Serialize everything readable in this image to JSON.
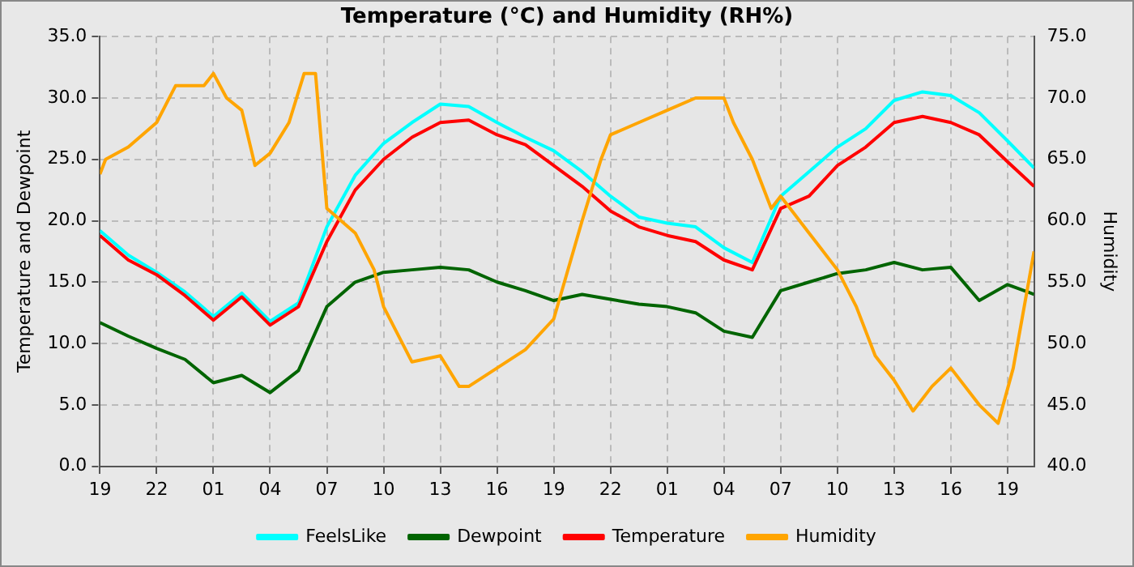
{
  "chart_data": {
    "type": "line",
    "title": "Temperature (°C) and Humidity (RH%)",
    "ylabel": "Temperature and Dewpoint",
    "y2label": "Humidity",
    "x": [
      "--01-01T19:00",
      "--01-01T20:30",
      "--01-01T22:00",
      "--01-01T23:30",
      "--01-02T01:00",
      "--01-02T02:30",
      "--01-02T04:00",
      "--01-02T05:30",
      "--01-02T07:00",
      "--01-02T08:30",
      "--01-02T10:00",
      "--01-02T11:30",
      "--01-02T13:00",
      "--01-02T14:30",
      "--01-02T16:00",
      "--01-02T17:30",
      "--01-02T19:00",
      "--01-02T20:30",
      "--01-02T22:00",
      "--01-02T23:30",
      "--01-03T01:00",
      "--01-03T02:30",
      "--01-03T04:00",
      "--01-03T05:30",
      "--01-03T07:00",
      "--01-03T08:30",
      "--01-03T10:00",
      "--01-03T11:30",
      "--01-03T13:00",
      "--01-03T14:30",
      "--01-03T16:00",
      "--01-03T17:30",
      "--01-03T19:00",
      "--01-03T20:24"
    ],
    "series": [
      {
        "name": "FeelsLike",
        "color": "#00ffff",
        "values": [
          19.2,
          17.2,
          15.8,
          14.2,
          12.2,
          14.1,
          11.8,
          13.3,
          19.5,
          23.7,
          26.3,
          28.0,
          29.5,
          29.3,
          28.0,
          26.8,
          25.7,
          24.0,
          22.0,
          20.3,
          19.8,
          19.5,
          17.8,
          16.6,
          22.0,
          24.0,
          26.0,
          27.5,
          29.8,
          30.5,
          30.2,
          28.8,
          26.5,
          24.3
        ]
      },
      {
        "name": "Dewpoint",
        "color": "#006400",
        "values": [
          11.7,
          10.6,
          9.6,
          8.7,
          6.8,
          7.4,
          6.0,
          7.8,
          13.0,
          15.0,
          15.8,
          16.0,
          16.2,
          16.0,
          15.0,
          14.3,
          13.5,
          14.0,
          13.6,
          13.2,
          13.0,
          12.5,
          11.0,
          10.5,
          14.3,
          15.0,
          15.7,
          16.0,
          16.6,
          16.0,
          16.2,
          13.5,
          14.8,
          14.0
        ]
      },
      {
        "name": "Temperature",
        "color": "#ff0000",
        "values": [
          18.8,
          16.8,
          15.6,
          13.9,
          11.9,
          13.8,
          11.5,
          13.0,
          18.3,
          22.5,
          25.0,
          26.8,
          28.0,
          28.2,
          27.0,
          26.2,
          24.5,
          22.8,
          20.8,
          19.5,
          18.8,
          18.3,
          16.8,
          16.0,
          21.0,
          22.0,
          24.5,
          26.0,
          28.0,
          28.5,
          28.0,
          27.0,
          24.8,
          22.8
        ]
      },
      {
        "name": "Humidity",
        "color": "#ffa500",
        "axis": "y2",
        "x": [
          "--01-01T19:00",
          "--01-01T19:18",
          "--01-01T20:30",
          "--01-01T22:00",
          "--01-01T23:00",
          "--01-02T00:30",
          "--01-02T01:00",
          "--01-02T01:42",
          "--01-02T02:30",
          "--01-02T03:12",
          "--01-02T04:00",
          "--01-02T05:00",
          "--01-02T05:48",
          "--01-02T06:24",
          "--01-02T07:00",
          "--01-02T08:30",
          "--01-02T09:30",
          "--01-02T10:00",
          "--01-02T11:00",
          "--01-02T11:30",
          "--01-02T13:00",
          "--01-02T14:00",
          "--01-02T14:30",
          "--01-02T16:00",
          "--01-02T17:30",
          "--01-02T19:00",
          "--01-02T20:30",
          "--01-02T21:30",
          "--01-02T22:00",
          "--01-02T23:30",
          "--01-03T01:00",
          "--01-03T02:30",
          "--01-03T04:00",
          "--01-03T04:30",
          "--01-03T05:30",
          "--01-03T06:30",
          "--01-03T07:00",
          "--01-03T08:30",
          "--01-03T10:00",
          "--01-03T11:00",
          "--01-03T12:00",
          "--01-03T13:00",
          "--01-03T14:00",
          "--01-03T15:00",
          "--01-03T16:00",
          "--01-03T17:30",
          "--01-03T18:30",
          "--01-03T19:18",
          "--01-03T20:24"
        ],
        "values": [
          63.8,
          65,
          66,
          68,
          71,
          71,
          72,
          70,
          69,
          64.5,
          65.5,
          68,
          72,
          72,
          61,
          59,
          56,
          53,
          50,
          48.5,
          49,
          46.5,
          46.5,
          48,
          49.5,
          52,
          60,
          65,
          67,
          68,
          69,
          70,
          70,
          68,
          65,
          61,
          62,
          59,
          56,
          53,
          49,
          47,
          44.5,
          46.5,
          48,
          45,
          43.5,
          48,
          57.5
        ]
      }
    ],
    "xlim": [
      "--01-01T19:00",
      "--01-03T20:24"
    ],
    "xticks": [
      {
        "value": "--01-01T19:00",
        "label": "19"
      },
      {
        "value": "--01-01T22:00",
        "label": "22"
      },
      {
        "value": "--01-02T01:00",
        "label": "01"
      },
      {
        "value": "--01-02T04:00",
        "label": "04"
      },
      {
        "value": "--01-02T07:00",
        "label": "07"
      },
      {
        "value": "--01-02T10:00",
        "label": "10"
      },
      {
        "value": "--01-02T13:00",
        "label": "13"
      },
      {
        "value": "--01-02T16:00",
        "label": "16"
      },
      {
        "value": "--01-02T19:00",
        "label": "19"
      },
      {
        "value": "--01-02T22:00",
        "label": "22"
      },
      {
        "value": "--01-03T01:00",
        "label": "01"
      },
      {
        "value": "--01-03T04:00",
        "label": "04"
      },
      {
        "value": "--01-03T07:00",
        "label": "07"
      },
      {
        "value": "--01-03T10:00",
        "label": "10"
      },
      {
        "value": "--01-03T13:00",
        "label": "13"
      },
      {
        "value": "--01-03T16:00",
        "label": "16"
      },
      {
        "value": "--01-03T19:00",
        "label": "19"
      }
    ],
    "ylim": [
      0,
      35
    ],
    "yticks": [
      {
        "value": 0,
        "label": "0.0"
      },
      {
        "value": 5,
        "label": "5.0"
      },
      {
        "value": 10,
        "label": "10.0"
      },
      {
        "value": 15,
        "label": "15.0"
      },
      {
        "value": 20,
        "label": "20.0"
      },
      {
        "value": 25,
        "label": "25.0"
      },
      {
        "value": 30,
        "label": "30.0"
      },
      {
        "value": 35,
        "label": "35.0"
      }
    ],
    "y2lim": [
      40,
      75
    ],
    "y2ticks": [
      {
        "value": 40,
        "label": "40.0"
      },
      {
        "value": 45,
        "label": "45.0"
      },
      {
        "value": 50,
        "label": "50.0"
      },
      {
        "value": 55,
        "label": "55.0"
      },
      {
        "value": 60,
        "label": "60.0"
      },
      {
        "value": 65,
        "label": "65.0"
      },
      {
        "value": 70,
        "label": "70.0"
      },
      {
        "value": 75,
        "label": "75.0"
      }
    ],
    "grid": true,
    "legend": "bottom",
    "marker": "none",
    "line_style": "solid"
  }
}
